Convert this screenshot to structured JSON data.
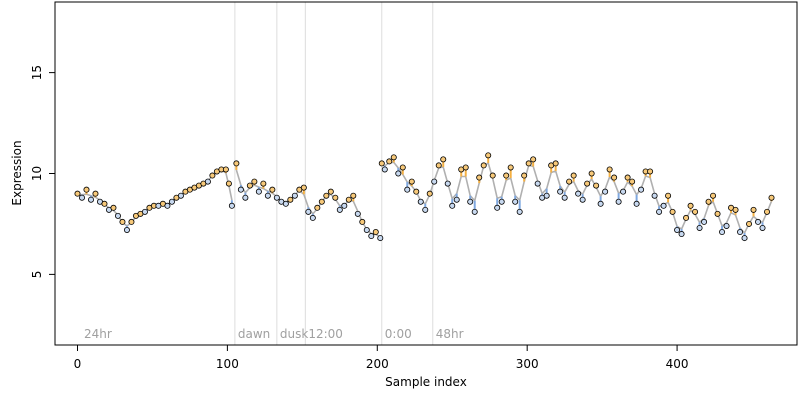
{
  "chart_data": {
    "type": "scatter",
    "title": "",
    "xlabel": "Sample index",
    "ylabel": "Expression",
    "xlim": [
      -15,
      480
    ],
    "ylim": [
      1.5,
      18.5
    ],
    "x_ticks": [
      0,
      100,
      200,
      300,
      400
    ],
    "y_ticks": [
      5,
      10,
      15
    ],
    "grid": false,
    "period_markers": [
      {
        "x": 105,
        "label": "dawn"
      },
      {
        "x": 133,
        "label": "dusk"
      },
      {
        "x": 152,
        "label": "12:00"
      },
      {
        "x": 203,
        "label": "0:00"
      },
      {
        "x": 237,
        "label": "48hr"
      }
    ],
    "start_label": "24hr",
    "series": [
      {
        "segment": 1,
        "x": [
          0,
          3,
          6,
          9,
          12,
          15,
          18,
          21,
          24,
          27,
          30,
          33,
          36,
          39,
          42,
          45,
          48,
          51,
          54,
          57,
          60,
          63,
          66,
          69,
          72,
          75,
          78,
          81,
          84,
          87,
          90,
          93,
          96,
          99,
          101,
          103
        ],
        "values": [
          9.0,
          8.8,
          9.2,
          8.7,
          9.0,
          8.6,
          8.5,
          8.2,
          8.3,
          7.9,
          7.6,
          7.2,
          7.6,
          7.9,
          8.0,
          8.1,
          8.3,
          8.4,
          8.4,
          8.5,
          8.4,
          8.6,
          8.8,
          8.9,
          9.1,
          9.2,
          9.3,
          9.4,
          9.5,
          9.6,
          9.9,
          10.1,
          10.2,
          10.2,
          9.5,
          8.4
        ]
      },
      {
        "segment": 2,
        "x": [
          106,
          109,
          112,
          115,
          118,
          121,
          124,
          127,
          130,
          133,
          136,
          139,
          142,
          145,
          148,
          151,
          154,
          157,
          160,
          163,
          166,
          169,
          172,
          175,
          178,
          181,
          184,
          187,
          190,
          193,
          196,
          199,
          202
        ],
        "values": [
          10.5,
          9.2,
          8.8,
          9.4,
          9.6,
          9.1,
          9.5,
          8.9,
          9.2,
          8.8,
          8.6,
          8.5,
          8.7,
          8.9,
          9.2,
          9.3,
          8.1,
          7.8,
          8.3,
          8.6,
          8.9,
          9.1,
          8.8,
          8.2,
          8.4,
          8.7,
          8.9,
          8.0,
          7.6,
          7.2,
          6.9,
          7.1,
          6.8
        ]
      },
      {
        "segment": 3,
        "x": [
          203,
          205,
          208,
          211,
          214,
          217,
          220,
          223,
          226,
          229,
          232,
          235,
          238,
          241,
          244,
          247,
          250,
          253,
          256,
          259,
          262,
          265,
          268,
          271,
          274,
          277,
          280,
          283,
          286,
          289,
          292,
          295,
          298,
          301,
          304,
          307,
          310,
          313,
          316,
          319,
          322,
          325,
          328,
          331,
          334,
          337,
          340,
          343,
          346,
          349,
          352,
          355,
          358,
          361,
          364,
          367,
          370,
          373,
          376,
          379,
          382,
          385,
          388,
          391,
          394,
          397,
          400,
          403,
          406,
          409,
          412,
          415,
          418,
          421,
          424,
          427,
          430,
          433,
          436,
          439,
          442,
          445,
          448,
          451,
          454,
          457,
          460,
          463
        ],
        "values": [
          10.5,
          10.2,
          10.6,
          10.8,
          10.0,
          10.3,
          9.2,
          9.6,
          9.1,
          8.6,
          8.2,
          9.0,
          9.6,
          10.4,
          10.7,
          9.5,
          8.4,
          8.7,
          10.2,
          10.3,
          8.6,
          8.1,
          9.8,
          10.4,
          10.9,
          9.9,
          8.3,
          8.6,
          9.9,
          10.3,
          8.6,
          8.1,
          9.9,
          10.5,
          10.7,
          9.5,
          8.8,
          8.9,
          10.4,
          10.5,
          9.1,
          8.8,
          9.6,
          9.9,
          9.0,
          8.7,
          9.5,
          10.0,
          9.4,
          8.5,
          9.1,
          10.2,
          9.8,
          8.6,
          9.1,
          9.8,
          9.6,
          8.5,
          9.2,
          10.1,
          10.1,
          8.9,
          8.1,
          8.4,
          8.9,
          8.1,
          7.2,
          7.0,
          7.8,
          8.4,
          8.1,
          7.3,
          7.6,
          8.6,
          8.9,
          8.0,
          7.1,
          7.4,
          8.3,
          8.2,
          7.1,
          6.8,
          7.5,
          8.2,
          7.6,
          7.3,
          8.1,
          8.8
        ]
      }
    ]
  }
}
